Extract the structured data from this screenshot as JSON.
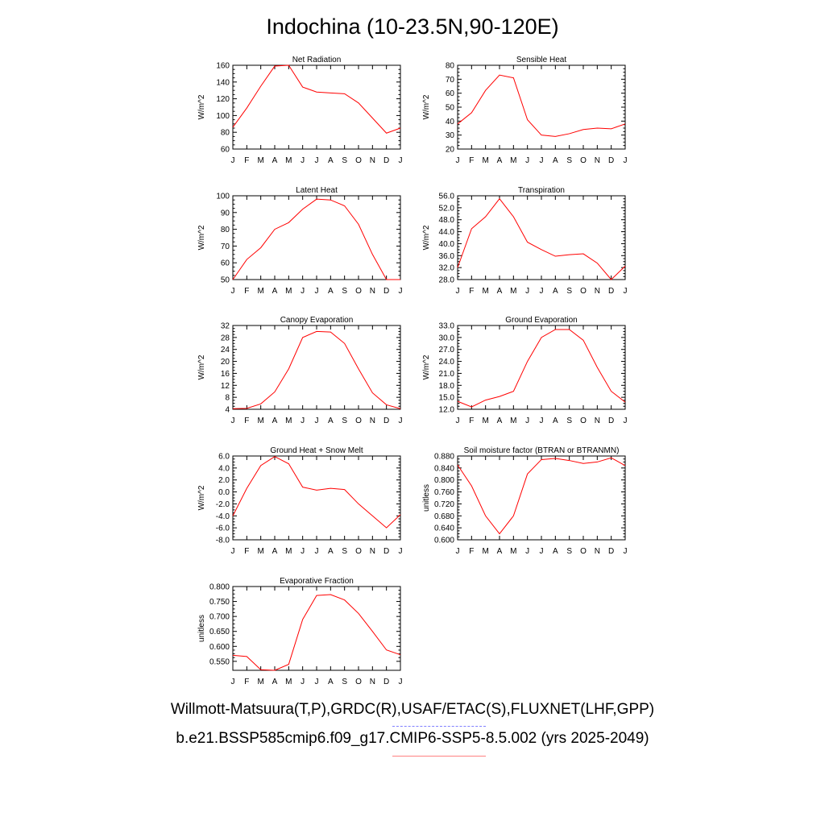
{
  "title": "Indochina (10-23.5N,90-120E)",
  "months": [
    "J",
    "F",
    "M",
    "A",
    "M",
    "J",
    "J",
    "A",
    "S",
    "O",
    "N",
    "D",
    "J"
  ],
  "legend": {
    "line1": "Willmott-Matsuura(T,P),GRDC(R),USAF/ETAC(S),FLUXNET(LHF,GPP)",
    "line2": "b.e21.BSSP585cmip6.f09_g17.CMIP6-SSP5-8.5.002 (yrs 2025-2049)",
    "obs_color": "#0000ff",
    "model_color": "#ff0000"
  },
  "chart_data": [
    {
      "type": "line",
      "title": "Net Radiation",
      "ylabel": "W/m^2",
      "ylim": [
        60,
        160
      ],
      "yticks": [
        "60",
        "80",
        "100",
        "120",
        "140",
        "160"
      ],
      "series": [
        {
          "color": "#ff0000",
          "values": [
            86,
            109,
            135,
            159,
            160,
            134,
            128,
            127,
            126,
            115,
            97,
            79,
            85
          ]
        }
      ]
    },
    {
      "type": "line",
      "title": "Sensible Heat",
      "ylabel": "W/m^2",
      "ylim": [
        20,
        80
      ],
      "yticks": [
        "20",
        "30",
        "40",
        "50",
        "60",
        "70",
        "80"
      ],
      "series": [
        {
          "color": "#ff0000",
          "values": [
            38,
            46,
            62,
            73,
            71,
            41,
            30,
            29,
            31,
            34,
            35,
            34.5,
            38
          ]
        }
      ]
    },
    {
      "type": "line",
      "title": "Latent Heat",
      "ylabel": "W/m^2",
      "ylim": [
        50,
        100
      ],
      "yticks": [
        "50",
        "60",
        "70",
        "80",
        "90",
        "100"
      ],
      "series": [
        {
          "color": "#ff0000",
          "values": [
            50,
            62,
            69,
            80,
            84,
            92,
            98,
            97.5,
            94,
            83,
            65,
            50,
            50
          ]
        }
      ]
    },
    {
      "type": "line",
      "title": "Transpiration",
      "ylabel": "W/m^2",
      "ylim": [
        28,
        56
      ],
      "yticks": [
        "28.0",
        "32.0",
        "36.0",
        "40.0",
        "44.0",
        "48.0",
        "52.0",
        "56.0"
      ],
      "series": [
        {
          "color": "#ff0000",
          "values": [
            32,
            45,
            49,
            55,
            49,
            40.5,
            38,
            35.8,
            36.3,
            36.6,
            33.5,
            28,
            32.5
          ]
        }
      ]
    },
    {
      "type": "line",
      "title": "Canopy Evaporation",
      "ylabel": "W/m^2",
      "ylim": [
        4,
        32
      ],
      "yticks": [
        "4",
        "8",
        "12",
        "16",
        "20",
        "24",
        "28",
        "32"
      ],
      "series": [
        {
          "color": "#ff0000",
          "values": [
            4.2,
            4.3,
            5.8,
            9.8,
            17.5,
            28,
            30,
            29.8,
            26,
            17.5,
            9.5,
            5.5,
            4.2
          ]
        }
      ]
    },
    {
      "type": "line",
      "title": "Ground Evaporation",
      "ylabel": "W/m^2",
      "ylim": [
        12,
        33
      ],
      "yticks": [
        "12.0",
        "15.0",
        "18.0",
        "21.0",
        "24.0",
        "27.0",
        "30.0",
        "33.0"
      ],
      "series": [
        {
          "color": "#ff0000",
          "values": [
            14,
            12.6,
            14.3,
            15.2,
            16.5,
            24,
            30,
            32,
            32,
            29.3,
            22.5,
            16.5,
            13.8
          ]
        }
      ]
    },
    {
      "type": "line",
      "title": "Ground Heat + Snow Melt",
      "ylabel": "W/m^2",
      "ylim": [
        -8,
        6
      ],
      "yticks": [
        "-8.0",
        "-6.0",
        "-4.0",
        "-2.0",
        "0.0",
        "2.0",
        "4.0",
        "6.0"
      ],
      "series": [
        {
          "color": "#ff0000",
          "values": [
            -4,
            0.6,
            4.4,
            5.9,
            4.7,
            0.8,
            0.3,
            0.6,
            0.4,
            -2,
            -4,
            -6,
            -3.8
          ]
        }
      ]
    },
    {
      "type": "line",
      "title": "Soil moisture factor (BTRAN or BTRANMN)",
      "ylabel": "unitless",
      "ylim": [
        0.6,
        0.88
      ],
      "yticks": [
        "0.600",
        "0.640",
        "0.680",
        "0.720",
        "0.760",
        "0.800",
        "0.840",
        "0.880"
      ],
      "series": [
        {
          "color": "#ff0000",
          "values": [
            0.85,
            0.78,
            0.68,
            0.62,
            0.68,
            0.82,
            0.868,
            0.872,
            0.865,
            0.855,
            0.86,
            0.874,
            0.848
          ]
        }
      ]
    },
    {
      "type": "line",
      "title": "Evaporative Fraction",
      "ylabel": "unitless",
      "ylim": [
        0.52,
        0.8
      ],
      "yticks": [
        "0.550",
        "0.600",
        "0.650",
        "0.700",
        "0.750",
        "0.800"
      ],
      "series": [
        {
          "color": "#ff0000",
          "values": [
            0.57,
            0.566,
            0.522,
            0.52,
            0.54,
            0.69,
            0.77,
            0.773,
            0.755,
            0.71,
            0.65,
            0.588,
            0.572
          ]
        }
      ]
    }
  ]
}
